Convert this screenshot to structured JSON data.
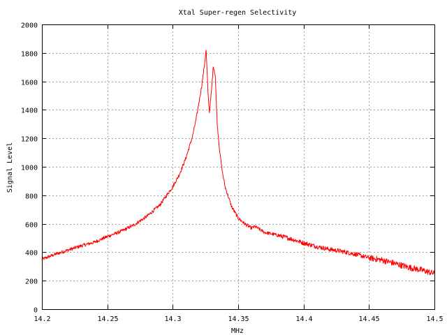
{
  "chart_data": {
    "type": "line",
    "title": "Xtal Super-regen Selectivity",
    "xlabel": "MHz",
    "ylabel": "Signal Level",
    "xlim": [
      14.2,
      14.5
    ],
    "ylim": [
      0,
      2000
    ],
    "x_ticks": [
      "14.2",
      "14.25",
      "14.3",
      "14.35",
      "14.4",
      "14.45",
      "14.5"
    ],
    "y_ticks": [
      "0",
      "200",
      "400",
      "600",
      "800",
      "1000",
      "1200",
      "1400",
      "1600",
      "1800",
      "2000"
    ],
    "grid": true,
    "line_color": "#ff0000",
    "series": [
      {
        "x": [
          14.2,
          14.21,
          14.22,
          14.23,
          14.24,
          14.25,
          14.26,
          14.27,
          14.28,
          14.29,
          14.3,
          14.305,
          14.31,
          14.315,
          14.318,
          14.32,
          14.322,
          14.324,
          14.3255,
          14.327,
          14.328,
          14.3295,
          14.331,
          14.3325,
          14.334,
          14.336,
          14.338,
          14.34,
          14.345,
          14.35,
          14.355,
          14.36,
          14.363,
          14.37,
          14.38,
          14.39,
          14.4,
          14.41,
          14.42,
          14.43,
          14.44,
          14.45,
          14.46,
          14.47,
          14.48,
          14.49,
          14.5
        ],
        "y": [
          350,
          385,
          415,
          445,
          470,
          510,
          545,
          590,
          650,
          730,
          860,
          945,
          1060,
          1210,
          1340,
          1450,
          1560,
          1700,
          1820,
          1510,
          1385,
          1520,
          1710,
          1640,
          1300,
          1100,
          960,
          860,
          720,
          640,
          600,
          570,
          580,
          540,
          520,
          495,
          465,
          440,
          420,
          405,
          385,
          360,
          345,
          320,
          295,
          275,
          250
        ]
      }
    ]
  }
}
